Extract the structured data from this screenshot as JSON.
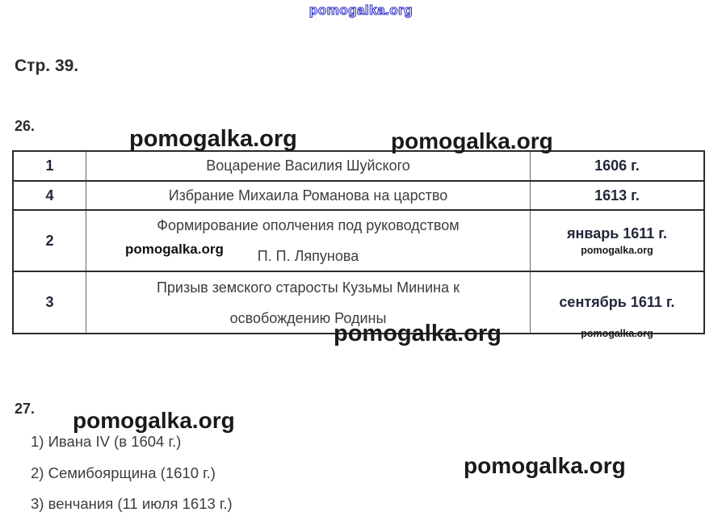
{
  "watermark": {
    "text": "pomogalka.org"
  },
  "page": {
    "title": "Стр. 39."
  },
  "q26": {
    "label": "26.",
    "table": {
      "rows": [
        {
          "num": "1",
          "event": [
            "Воцарение Василия Шуйского"
          ],
          "date": "1606 г."
        },
        {
          "num": "4",
          "event": [
            "Избрание Михаила Романова на царство"
          ],
          "date": "1613 г."
        },
        {
          "num": "2",
          "event": [
            "Формирование ополчения под руководством",
            "П. П. Ляпунова"
          ],
          "date": "январь 1611 г."
        },
        {
          "num": "3",
          "event": [
            "Призыв земского старосты Кузьмы Минина к",
            "освобождению Родины"
          ],
          "date": "сентябрь 1611 г."
        }
      ]
    }
  },
  "q27": {
    "label": "27.",
    "items": [
      "1) Ивана IV (в 1604 г.)",
      "2) Семибоярщина (1610 г.)",
      "3) венчания (11 июля 1613 г.)"
    ]
  }
}
